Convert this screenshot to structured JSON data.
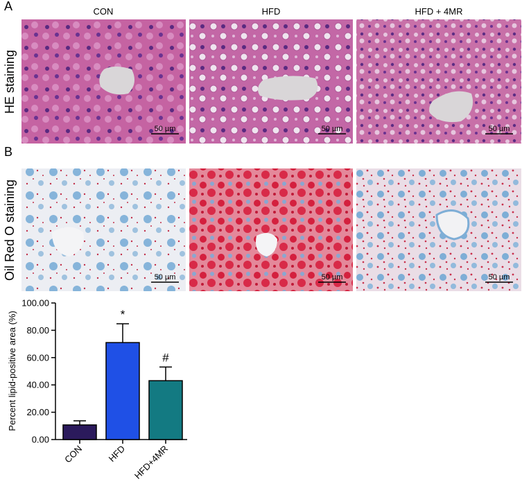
{
  "figure": {
    "panel_labels": [
      "A",
      "B"
    ],
    "columns": [
      "CON",
      "HFD",
      "HFD + 4MR"
    ],
    "rows": [
      "HE staining",
      "Oil Red O staining"
    ],
    "scale_bar": "50 µm"
  },
  "chart_data": {
    "type": "bar",
    "ylabel": "Percent lipid-positive area (%)",
    "categories": [
      "CON",
      "HFD",
      "HFD+4MR"
    ],
    "values": [
      10.7,
      71,
      43.1
    ],
    "errors": [
      3,
      13.8,
      10
    ],
    "colors": [
      "#2b1a5c",
      "#1f50e6",
      "#137a82"
    ],
    "annotations": [
      {
        "category": "HFD",
        "text": "*"
      },
      {
        "category": "HFD+4MR",
        "text": "#"
      }
    ],
    "ylim": [
      0,
      100
    ],
    "yticks": [
      {
        "value": 0,
        "label": "0.00"
      },
      {
        "value": 20,
        "label": "20.00"
      },
      {
        "value": 40,
        "label": "40.00"
      },
      {
        "value": 60,
        "label": "60.00"
      },
      {
        "value": 80,
        "label": "80.00"
      },
      {
        "value": 100,
        "label": "100.00"
      }
    ]
  }
}
